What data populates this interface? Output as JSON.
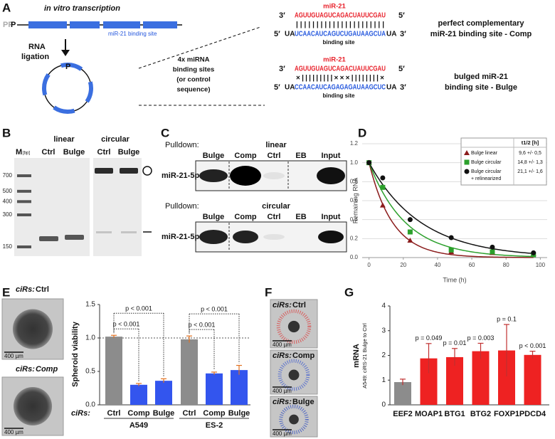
{
  "panel_labels": [
    "A",
    "B",
    "C",
    "D",
    "E",
    "F",
    "G"
  ],
  "schematic": {
    "title": "in vitro transcription",
    "prefix_gray": "PP",
    "prefix": "P",
    "binding_site_label": "miR-21 binding site",
    "ligation": [
      "RNA",
      "ligation"
    ],
    "circle_label": "P",
    "middle_text": [
      "4x miRNA",
      "binding sites",
      "(or control",
      "sequence)"
    ],
    "duplexes": [
      {
        "mirna_label": "miR-21",
        "end3": "3′",
        "mirna": "AGUUGUAGUCAGACUAUUCGAU",
        "end5": "5′",
        "pairing": "||||||||||||||||||||||",
        "end5b": "5′",
        "flank_left": "UA",
        "site": "UCAACAUCAGUCUGAUAAGCUA",
        "flank_right": "UA",
        "end3b": "3′",
        "site_label": "binding site",
        "description": [
          "perfect complementary",
          "miR-21 binding site - Comp"
        ]
      },
      {
        "mirna_label": "miR-21",
        "end3": "3′",
        "mirna": "AGUUGUAGUCAGACUAUUCGAU",
        "end5": "5′",
        "pairing": "×|||||||||×××||||||||×",
        "end5b": "5′",
        "flank_left": "UA",
        "site": "CCAACAUCAGAGAGAUAAGCUC",
        "flank_right": "UA",
        "end3b": "3′",
        "site_label": "binding site",
        "description": [
          "bulged miR-21",
          "binding site - Bulge"
        ]
      }
    ]
  },
  "gel": {
    "marker_label": "M",
    "marker_unit": "[bp]",
    "groups": [
      {
        "name": "linear",
        "lanes": [
          "Ctrl",
          "Bulge"
        ]
      },
      {
        "name": "circular",
        "lanes": [
          "Ctrl",
          "Bulge"
        ]
      }
    ],
    "ladder": [
      700,
      500,
      400,
      300,
      150
    ]
  },
  "pulldown": {
    "blots": [
      {
        "prefix": "Pulldown:",
        "title": "linear",
        "lanes": [
          "Bulge",
          "Comp",
          "Ctrl",
          "EB",
          "Input"
        ],
        "target": "miR-21-5p"
      },
      {
        "prefix": "Pulldown:",
        "title": "circular",
        "lanes": [
          "Bulge",
          "Comp",
          "Ctrl",
          "EB",
          "Input"
        ],
        "target": "miR-21-5p"
      }
    ]
  },
  "spheroids_e": [
    {
      "prefix": "ciRs:",
      "condition": "Ctrl",
      "scale": "400 µm"
    },
    {
      "prefix": "ciRs:",
      "condition": "Comp",
      "scale": "400 µm"
    }
  ],
  "spheroids_f": [
    {
      "prefix": "ciRs:",
      "condition": "Ctrl",
      "scale": "400 µm"
    },
    {
      "prefix": "ciRs:",
      "condition": "Comp",
      "scale": "400 µm"
    },
    {
      "prefix": "ciRs:",
      "condition": "Bulge",
      "scale": "400 µm"
    }
  ],
  "chart_data": [
    {
      "type": "line",
      "ylabel": "Remaining RNA",
      "xlabel": "Time (h)",
      "x": [
        0,
        8,
        24,
        48,
        72,
        96
      ],
      "xlim": [
        -4,
        104
      ],
      "ylim": [
        0,
        1.2
      ],
      "xticks": [
        0,
        20,
        40,
        60,
        80,
        100
      ],
      "yticks": [
        {
          "value": 0,
          "label": "0.0"
        },
        {
          "value": 0.2,
          "label": "0.2"
        },
        {
          "value": 0.4,
          "label": "0.4"
        },
        {
          "value": 0.6,
          "label": "0.6"
        },
        {
          "value": 0.8,
          "label": "0.8"
        },
        {
          "value": 1,
          "label": "1.0"
        },
        {
          "value": 1.2,
          "label": "1.2"
        }
      ],
      "grid": true,
      "legend_header": "t1/2 [h]",
      "series": [
        {
          "name": "Bulge linear",
          "color": "#8b1c1c",
          "marker": "triangle",
          "values": [
            1.0,
            0.55,
            0.18,
            0.06,
            0.05,
            0.04
          ],
          "t_half": 9.6,
          "t_half_label": "9,6 +/- 0,5"
        },
        {
          "name": "Bulge circular",
          "color": "#2ca02c",
          "marker": "square",
          "values": [
            1.0,
            0.74,
            0.27,
            0.08,
            0.06,
            0.03
          ],
          "t_half": 14.8,
          "t_half_label": "14,8 +/- 1,3"
        },
        {
          "name": "Bulge circular",
          "note": "+ relinearized",
          "color": "#111111",
          "marker": "circle",
          "values": [
            1.0,
            0.84,
            0.4,
            0.21,
            0.11,
            0.05
          ],
          "t_half": 21.1,
          "t_half_label": "21,1 +/- 1,6"
        }
      ]
    },
    {
      "type": "grouped-bar",
      "ylabel": "Spheroid viability",
      "ylim": [
        0,
        1.5
      ],
      "yticks": [
        {
          "value": 0,
          "label": "0.0"
        },
        {
          "value": 0.5,
          "label": "0.5"
        },
        {
          "value": 1,
          "label": "1.0"
        },
        {
          "value": 1.5,
          "label": "1.5"
        }
      ],
      "reference_line": 1,
      "category_title": "ciRs:",
      "groups": [
        {
          "name": "A549",
          "categories": [
            "Ctrl",
            "Comp",
            "Bulge"
          ],
          "values": [
            1.02,
            0.3,
            0.36
          ],
          "errors": [
            0.02,
            0.02,
            0.03
          ],
          "colors": [
            "#8c8c8c",
            "#3355ee",
            "#3355ee"
          ]
        },
        {
          "name": "ES-2",
          "categories": [
            "Ctrl",
            "Comp",
            "Bulge"
          ],
          "values": [
            0.98,
            0.47,
            0.52
          ],
          "errors": [
            0.05,
            0.02,
            0.07
          ],
          "colors": [
            "#8c8c8c",
            "#3355ee",
            "#3355ee"
          ]
        }
      ],
      "comparisons": [
        {
          "group": 0,
          "pair": [
            0,
            1
          ],
          "label": "p < 0.001"
        },
        {
          "group": 0,
          "pair": [
            0,
            2
          ],
          "label": "p < 0.001"
        },
        {
          "group": 1,
          "pair": [
            0,
            1
          ],
          "label": "p < 0.001"
        },
        {
          "group": 1,
          "pair": [
            0,
            2
          ],
          "label": "p < 0.001"
        }
      ]
    },
    {
      "type": "bar",
      "ylabel": "mRNA",
      "ysublabel": "A549: ciRS-21 Bulge to Ctrl",
      "ylim": [
        0,
        4
      ],
      "yticks": [
        0,
        1,
        2,
        3,
        4
      ],
      "categories": [
        "EEF2",
        "MOAP1",
        "BTG1",
        "BTG2",
        "FOXP1",
        "PDCD4"
      ],
      "values": [
        0.92,
        1.88,
        1.93,
        2.17,
        2.2,
        2.02
      ],
      "errors": [
        0.12,
        0.6,
        0.35,
        0.32,
        1.05,
        0.15
      ],
      "colors": [
        "#8c8c8c",
        "#ee2222",
        "#ee2222",
        "#ee2222",
        "#ee2222",
        "#ee2222"
      ],
      "annotations": [
        null,
        "p = 0.049",
        "p = 0.01",
        "p = 0.003",
        "p = 0.1",
        "p < 0.001"
      ]
    }
  ]
}
